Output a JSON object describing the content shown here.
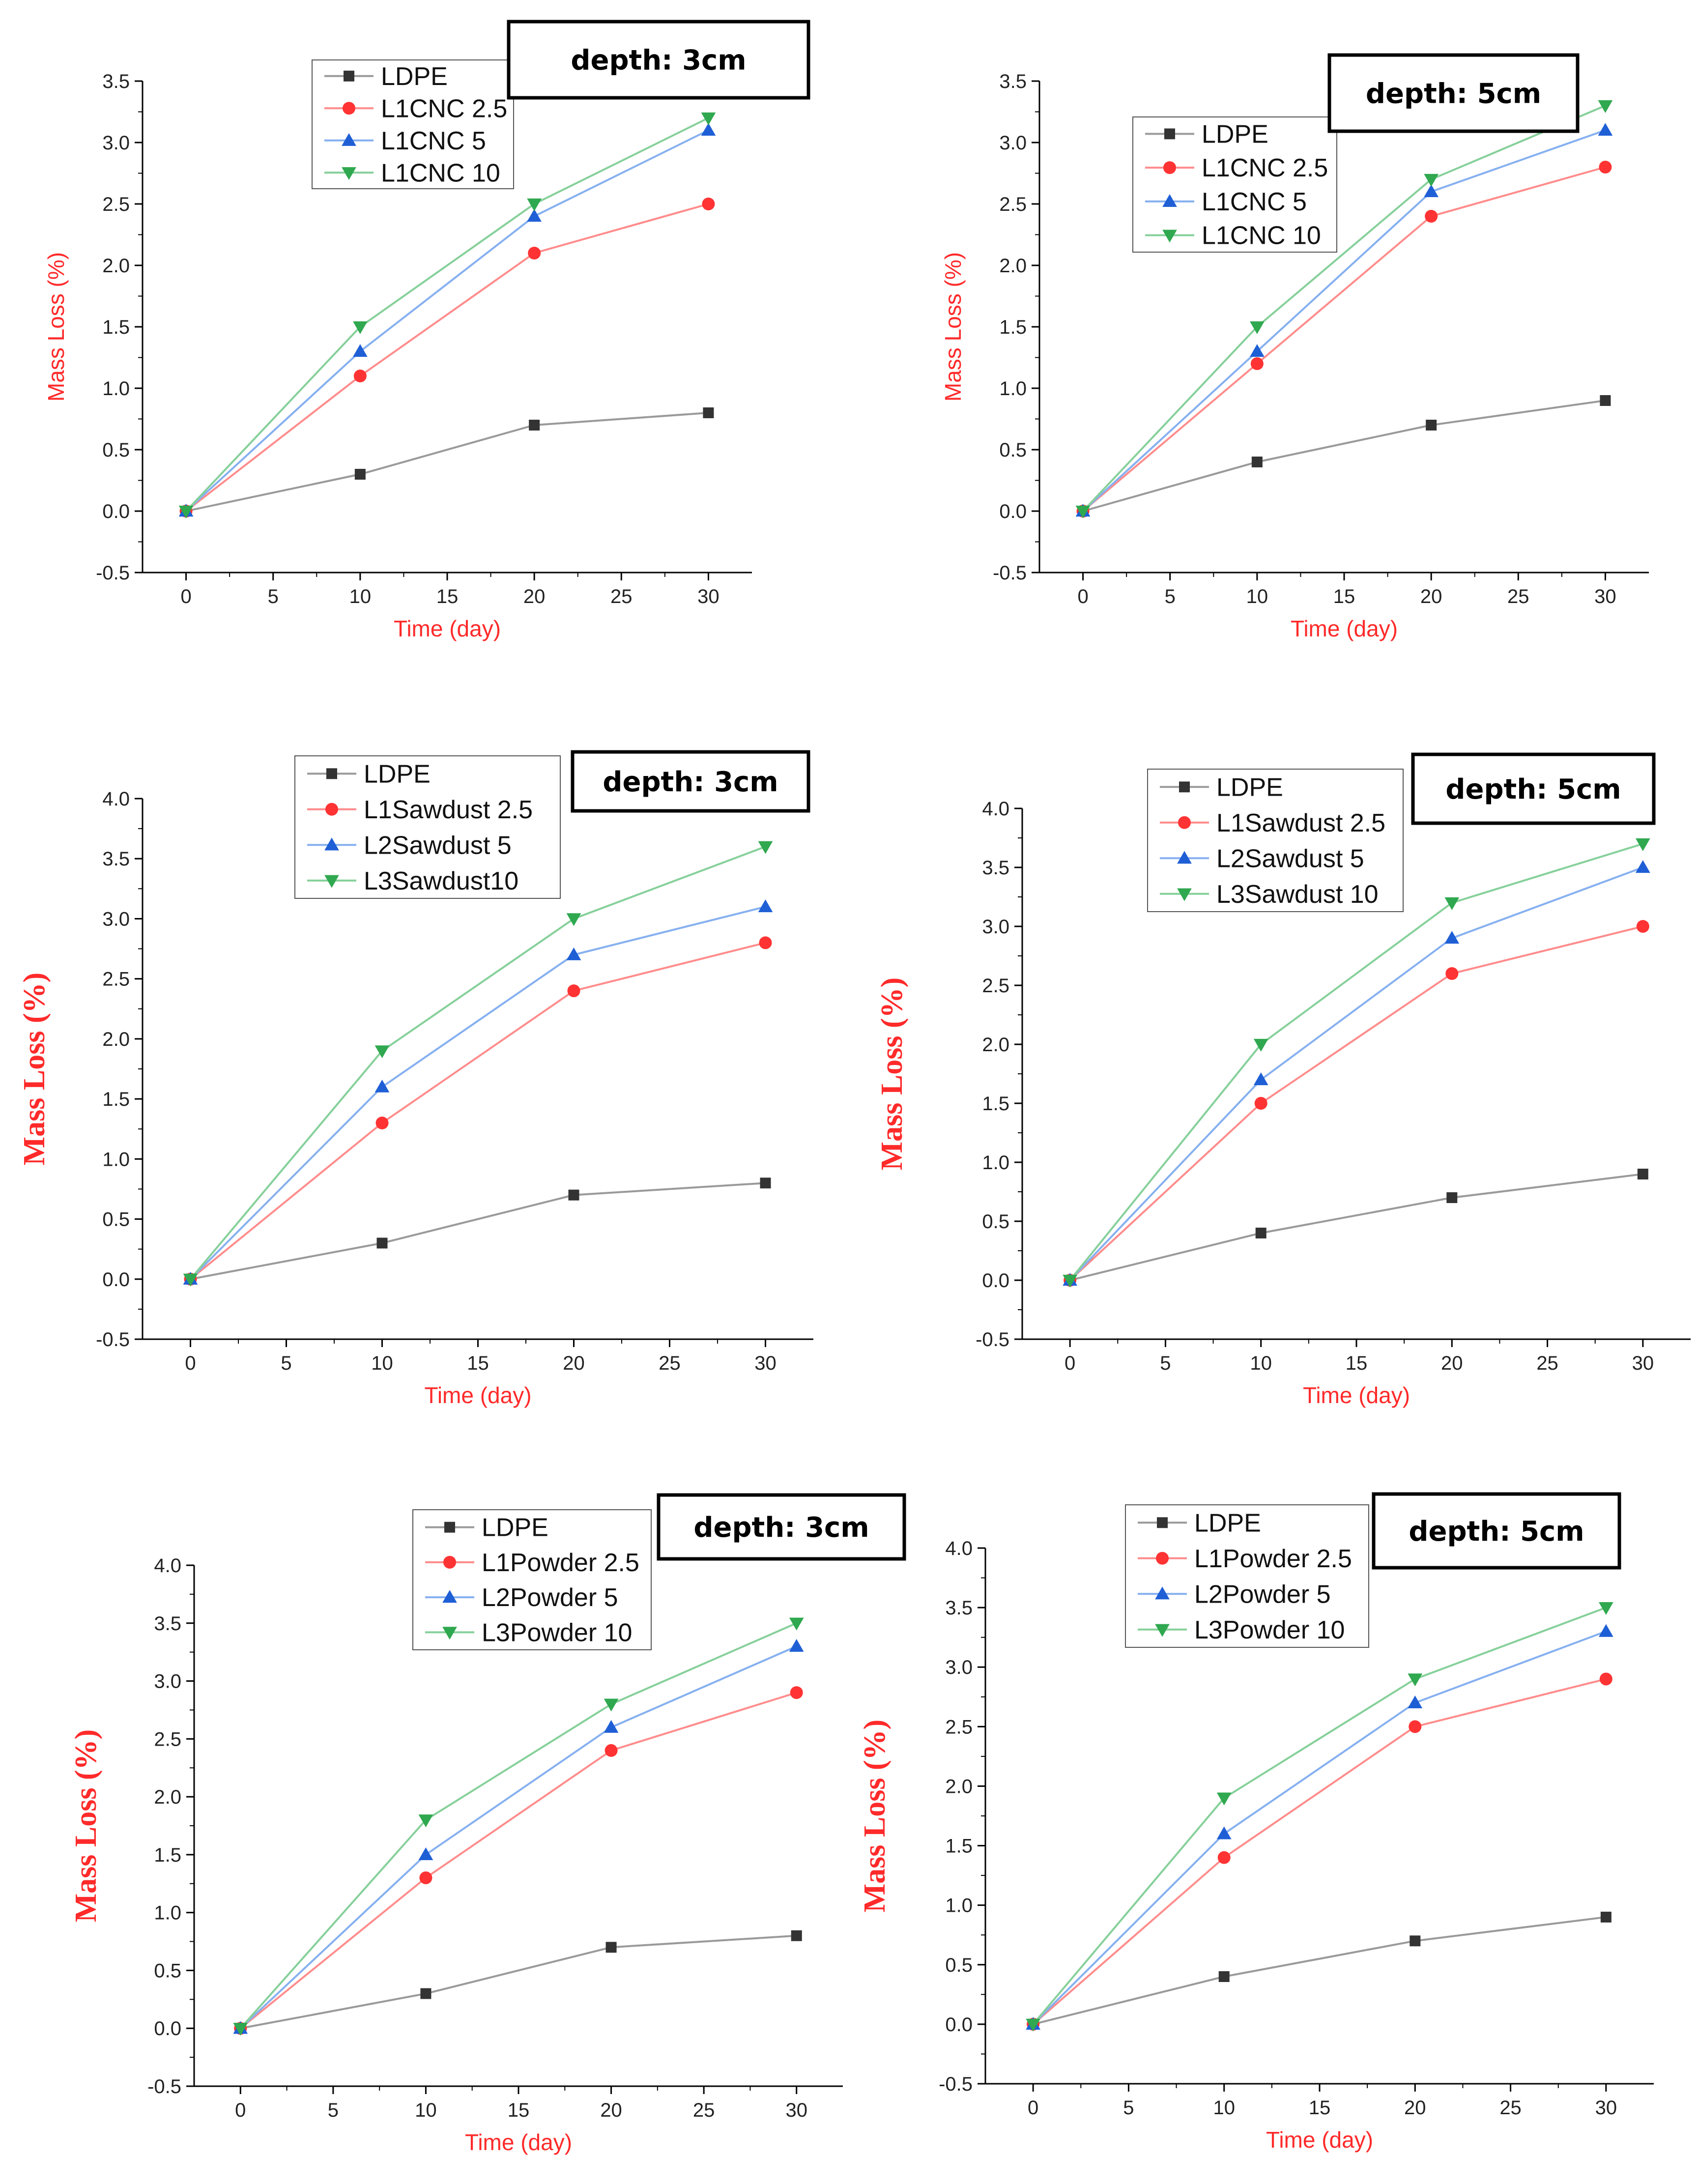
{
  "colors": {
    "LDPE": "#333333",
    "L1": "#ff3333",
    "L2": "#1f5fd6",
    "L3": "#2fa84f",
    "axis_title": "#ff2a2a",
    "line_ldpe": "#9a9a9a",
    "line_l1": "#ff8c8c",
    "line_l2": "#86b0f0",
    "line_l3": "#86d09a"
  },
  "chart_data": [
    {
      "type": "line",
      "panel": "top-left",
      "depth_label": "depth: 3cm",
      "xlabel": "Time (day)",
      "ylabel": "Mass Loss (%)",
      "x": [
        0,
        10,
        20,
        30
      ],
      "xlim": [
        -2.5,
        32.5
      ],
      "ylim": [
        -0.5,
        3.5
      ],
      "xticks": [
        0,
        5,
        10,
        15,
        20,
        25,
        30
      ],
      "yticks": [
        -0.5,
        0.0,
        0.5,
        1.0,
        1.5,
        2.0,
        2.5,
        3.0,
        3.5
      ],
      "legend_position": "top-center",
      "series": [
        {
          "name": "LDPE",
          "key": "LDPE",
          "marker": "square",
          "values": [
            0,
            0.3,
            0.7,
            0.8
          ]
        },
        {
          "name": "L1CNC 2.5",
          "key": "L1",
          "marker": "circle",
          "values": [
            0,
            1.1,
            2.1,
            2.5
          ]
        },
        {
          "name": "L1CNC 5",
          "key": "L2",
          "marker": "triangle-up",
          "values": [
            0,
            1.3,
            2.4,
            3.1
          ]
        },
        {
          "name": "L1CNC 10",
          "key": "L3",
          "marker": "triangle-down",
          "values": [
            0,
            1.5,
            2.5,
            3.2
          ]
        }
      ]
    },
    {
      "type": "line",
      "panel": "top-right",
      "depth_label": "depth: 5cm",
      "xlabel": "Time (day)",
      "ylabel": "Mass Loss (%)",
      "x": [
        0,
        10,
        20,
        30
      ],
      "xlim": [
        -2.5,
        32.5
      ],
      "ylim": [
        -0.5,
        3.5
      ],
      "xticks": [
        0,
        5,
        10,
        15,
        20,
        25,
        30
      ],
      "yticks": [
        -0.5,
        0.0,
        0.5,
        1.0,
        1.5,
        2.0,
        2.5,
        3.0,
        3.5
      ],
      "legend_position": "top-left",
      "series": [
        {
          "name": "LDPE",
          "key": "LDPE",
          "marker": "square",
          "values": [
            0,
            0.4,
            0.7,
            0.9
          ]
        },
        {
          "name": "L1CNC 2.5",
          "key": "L1",
          "marker": "circle",
          "values": [
            0,
            1.2,
            2.4,
            2.8
          ]
        },
        {
          "name": "L1CNC 5",
          "key": "L2",
          "marker": "triangle-up",
          "values": [
            0,
            1.3,
            2.6,
            3.1
          ]
        },
        {
          "name": "L1CNC 10",
          "key": "L3",
          "marker": "triangle-down",
          "values": [
            0,
            1.5,
            2.7,
            3.3
          ]
        }
      ]
    },
    {
      "type": "line",
      "panel": "middle-left",
      "depth_label": "depth: 3cm",
      "xlabel": "Time (day)",
      "ylabel": "Mass Loss (%)",
      "x": [
        0,
        10,
        20,
        30
      ],
      "xlim": [
        -2.5,
        32.5
      ],
      "ylim": [
        -0.5,
        4.0
      ],
      "xticks": [
        0,
        5,
        10,
        15,
        20,
        25,
        30
      ],
      "yticks": [
        -0.5,
        0.0,
        0.5,
        1.0,
        1.5,
        2.0,
        2.5,
        3.0,
        3.5,
        4.0
      ],
      "legend_position": "top-center",
      "series": [
        {
          "name": "LDPE",
          "key": "LDPE",
          "marker": "square",
          "values": [
            0,
            0.3,
            0.7,
            0.8
          ]
        },
        {
          "name": "L1Sawdust 2.5",
          "key": "L1",
          "marker": "circle",
          "values": [
            0,
            1.3,
            2.4,
            2.8
          ]
        },
        {
          "name": "L2Sawdust 5",
          "key": "L2",
          "marker": "triangle-up",
          "values": [
            0,
            1.6,
            2.7,
            3.1
          ]
        },
        {
          "name": "L3Sawdust10",
          "key": "L3",
          "marker": "triangle-down",
          "values": [
            0,
            1.9,
            3.0,
            3.6
          ]
        }
      ]
    },
    {
      "type": "line",
      "panel": "middle-right",
      "depth_label": "depth: 5cm",
      "xlabel": "Time (day)",
      "ylabel": "Mass Loss (%)",
      "x": [
        0,
        10,
        20,
        30
      ],
      "xlim": [
        -2.5,
        32.5
      ],
      "ylim": [
        -0.5,
        4.0
      ],
      "xticks": [
        0,
        5,
        10,
        15,
        20,
        25,
        30
      ],
      "yticks": [
        -0.5,
        0.0,
        0.5,
        1.0,
        1.5,
        2.0,
        2.5,
        3.0,
        3.5,
        4.0
      ],
      "legend_position": "top-left",
      "series": [
        {
          "name": "LDPE",
          "key": "LDPE",
          "marker": "square",
          "values": [
            0,
            0.4,
            0.7,
            0.9
          ]
        },
        {
          "name": "L1Sawdust 2.5",
          "key": "L1",
          "marker": "circle",
          "values": [
            0,
            1.5,
            2.6,
            3.0
          ]
        },
        {
          "name": "L2Sawdust 5",
          "key": "L2",
          "marker": "triangle-up",
          "values": [
            0,
            1.7,
            2.9,
            3.5
          ]
        },
        {
          "name": "L3Sawdust 10",
          "key": "L3",
          "marker": "triangle-down",
          "values": [
            0,
            2.0,
            3.2,
            3.7
          ]
        }
      ]
    },
    {
      "type": "line",
      "panel": "bottom-left",
      "depth_label": "depth: 3cm",
      "xlabel": "Time (day)",
      "ylabel": "Mass Loss (%)",
      "x": [
        0,
        10,
        20,
        30
      ],
      "xlim": [
        -2.5,
        32.5
      ],
      "ylim": [
        -0.5,
        4.0
      ],
      "xticks": [
        0,
        5,
        10,
        15,
        20,
        25,
        30
      ],
      "yticks": [
        -0.5,
        0.0,
        0.5,
        1.0,
        1.5,
        2.0,
        2.5,
        3.0,
        3.5,
        4.0
      ],
      "legend_position": "top-center",
      "series": [
        {
          "name": "LDPE",
          "key": "LDPE",
          "marker": "square",
          "values": [
            0,
            0.3,
            0.7,
            0.8
          ]
        },
        {
          "name": "L1Powder 2.5",
          "key": "L1",
          "marker": "circle",
          "values": [
            0,
            1.3,
            2.4,
            2.9
          ]
        },
        {
          "name": "L2Powder 5",
          "key": "L2",
          "marker": "triangle-up",
          "values": [
            0,
            1.5,
            2.6,
            3.3
          ]
        },
        {
          "name": "L3Powder 10",
          "key": "L3",
          "marker": "triangle-down",
          "values": [
            0,
            1.8,
            2.8,
            3.5
          ]
        }
      ]
    },
    {
      "type": "line",
      "panel": "bottom-right",
      "depth_label": "depth: 5cm",
      "xlabel": "Time (day)",
      "ylabel": "Mass Loss (%)",
      "x": [
        0,
        10,
        20,
        30
      ],
      "xlim": [
        -2.5,
        32.5
      ],
      "ylim": [
        -0.5,
        4.0
      ],
      "xticks": [
        0,
        5,
        10,
        15,
        20,
        25,
        30
      ],
      "yticks": [
        -0.5,
        0.0,
        0.5,
        1.0,
        1.5,
        2.0,
        2.5,
        3.0,
        3.5,
        4.0
      ],
      "legend_position": "top-left",
      "series": [
        {
          "name": "LDPE",
          "key": "LDPE",
          "marker": "square",
          "values": [
            0,
            0.4,
            0.7,
            0.9
          ]
        },
        {
          "name": "L1Powder 2.5",
          "key": "L1",
          "marker": "circle",
          "values": [
            0,
            1.4,
            2.5,
            2.9
          ]
        },
        {
          "name": "L2Powder 5",
          "key": "L2",
          "marker": "triangle-up",
          "values": [
            0,
            1.6,
            2.7,
            3.3
          ]
        },
        {
          "name": "L3Powder 10",
          "key": "L3",
          "marker": "triangle-down",
          "values": [
            0,
            1.9,
            2.9,
            3.5
          ]
        }
      ]
    }
  ]
}
